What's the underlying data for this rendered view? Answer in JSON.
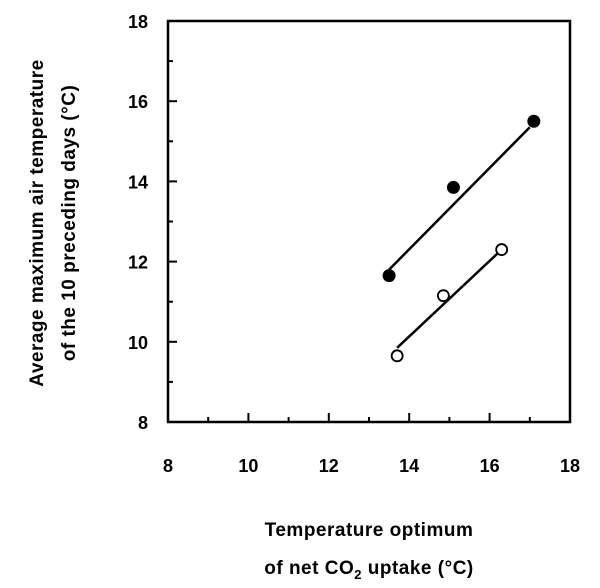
{
  "chart_data": {
    "type": "scatter",
    "xlabel": {
      "line1": "Temperature optimum",
      "line2_prefix": "of net CO",
      "line2_sub": "2",
      "line2_suffix": " uptake (°C)"
    },
    "ylabel": {
      "line1": "Average maximum air temperature",
      "line2": "of the 10 preceding days (°C)"
    },
    "xlim": [
      8,
      18
    ],
    "ylim": [
      8,
      18
    ],
    "xticks": [
      8,
      10,
      12,
      14,
      16,
      18
    ],
    "yticks": [
      8,
      10,
      12,
      14,
      16,
      18
    ],
    "minor_step": 1,
    "grid": false,
    "series": [
      {
        "marker": "filled-circle",
        "points": [
          [
            13.5,
            11.65
          ],
          [
            15.1,
            13.85
          ],
          [
            17.1,
            15.5
          ]
        ],
        "fit_line": [
          [
            13.5,
            11.8
          ],
          [
            17.0,
            15.35
          ]
        ]
      },
      {
        "marker": "open-circle",
        "points": [
          [
            13.7,
            9.65
          ],
          [
            14.85,
            11.15
          ],
          [
            16.3,
            12.3
          ]
        ],
        "fit_line": [
          [
            13.7,
            9.85
          ],
          [
            16.3,
            12.3
          ]
        ]
      }
    ]
  }
}
